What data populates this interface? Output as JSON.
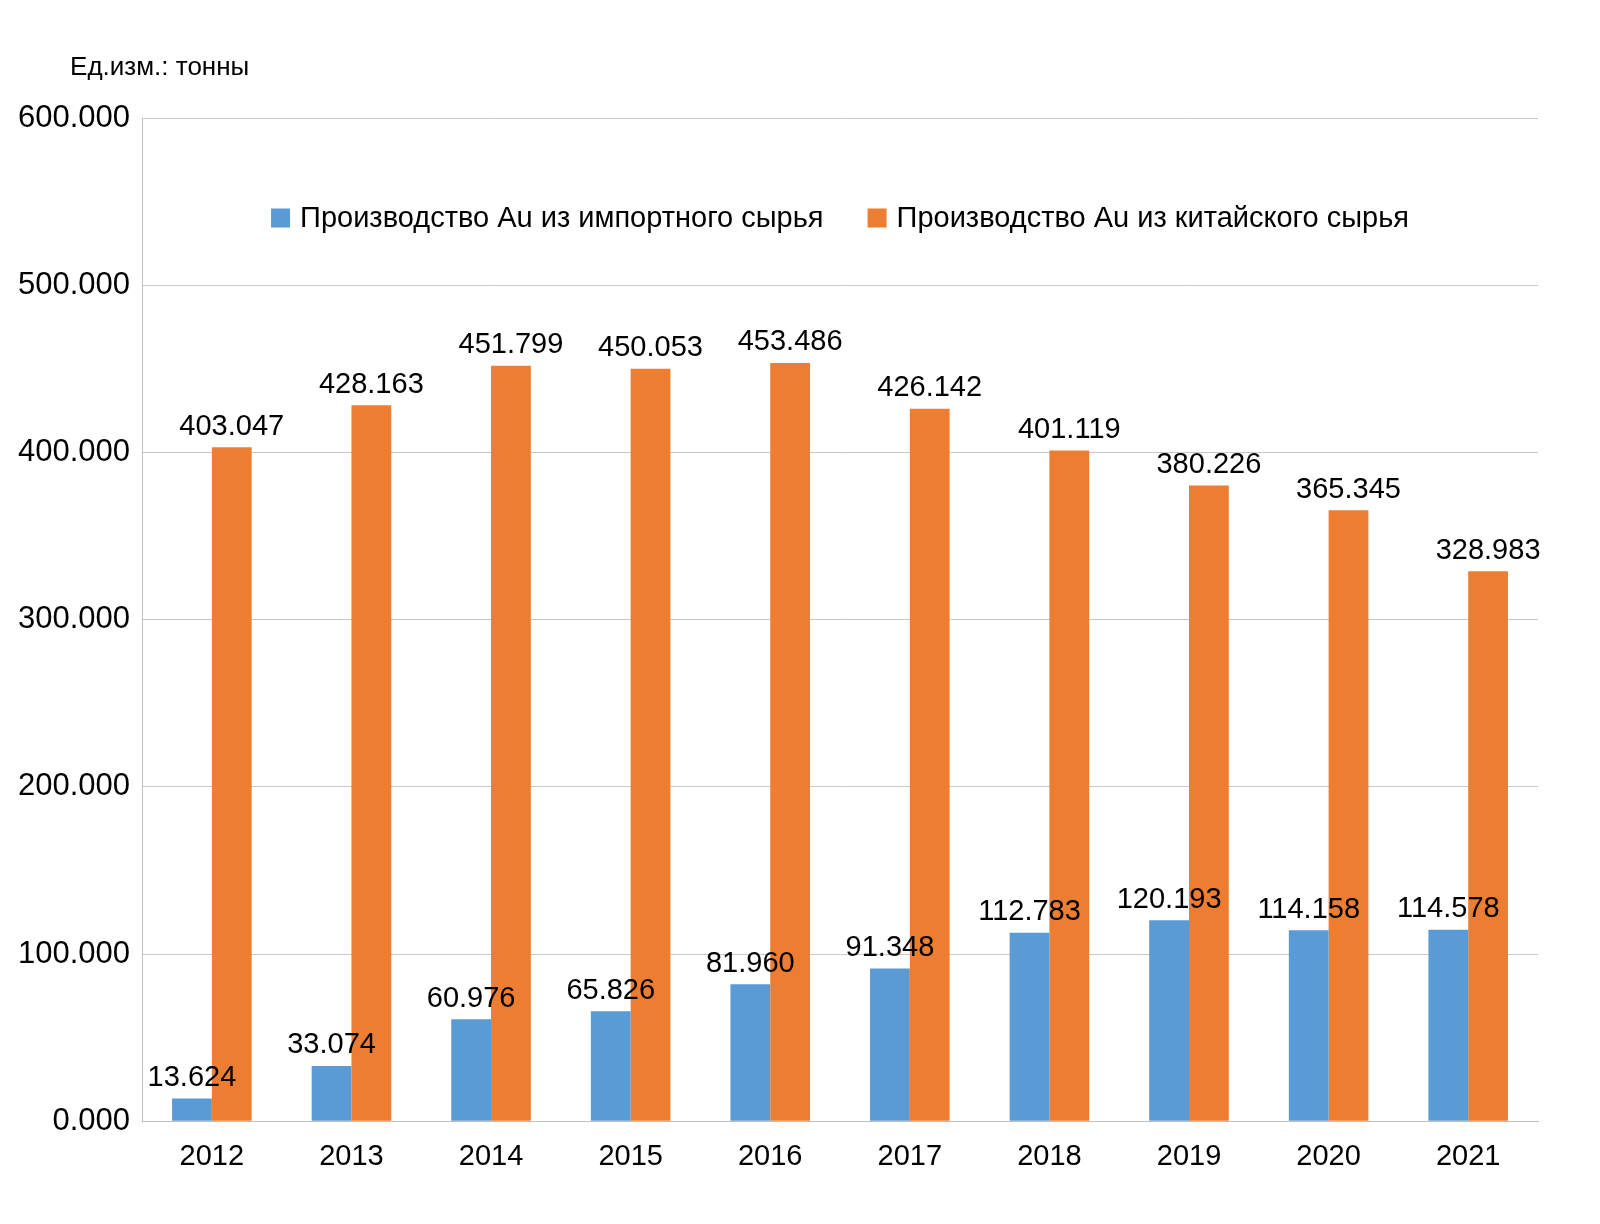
{
  "chart_data": {
    "type": "bar",
    "y_label": "Ед.изм.: тонны",
    "categories": [
      "2012",
      "2013",
      "2014",
      "2015",
      "2016",
      "2017",
      "2018",
      "2019",
      "2020",
      "2021"
    ],
    "series": [
      {
        "name": "Производство Au из импортного сырья",
        "color": "#5b9bd5",
        "values": [
          13.624,
          33.074,
          60.976,
          65.826,
          81.96,
          91.348,
          112.783,
          120.193,
          114.158,
          114.578
        ],
        "value_labels": [
          "13.624",
          "33.074",
          "60.976",
          "65.826",
          "81.960",
          "91.348",
          "112.783",
          "120.193",
          "114.158",
          "114.578"
        ]
      },
      {
        "name": "Производство Au из китайского сырья",
        "color": "#ed7d31",
        "values": [
          403.047,
          428.163,
          451.799,
          450.053,
          453.486,
          426.142,
          401.119,
          380.226,
          365.345,
          328.983
        ],
        "value_labels": [
          "403.047",
          "428.163",
          "451.799",
          "450.053",
          "453.486",
          "426.142",
          "401.119",
          "380.226",
          "365.345",
          "328.983"
        ]
      }
    ],
    "ylim": [
      0,
      600
    ],
    "yticks": [
      {
        "value": 0,
        "label": "0.000"
      },
      {
        "value": 100,
        "label": "100.000"
      },
      {
        "value": 200,
        "label": "200.000"
      },
      {
        "value": 300,
        "label": "300.000"
      },
      {
        "value": 400,
        "label": "400.000"
      },
      {
        "value": 500,
        "label": "500.000"
      },
      {
        "value": 600,
        "label": "600.000"
      }
    ],
    "grid": true,
    "legend": "top",
    "data_labels": true
  }
}
